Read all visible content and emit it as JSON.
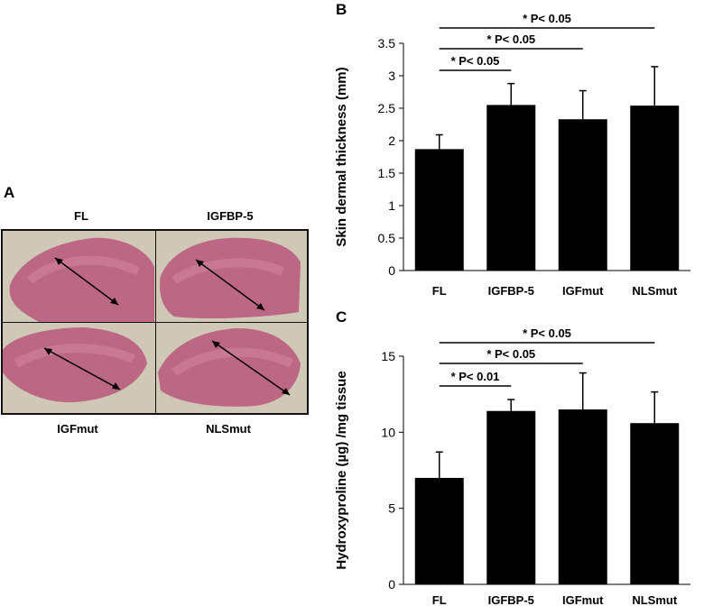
{
  "panel_a": {
    "letter": "A",
    "labels": [
      "FL",
      "IGFBP-5",
      "IGFmut",
      "NLSmut"
    ]
  },
  "chart_data": [
    {
      "panel": "B",
      "type": "bar",
      "categories": [
        "FL",
        "IGFBP-5",
        "IGFmut",
        "NLSmut"
      ],
      "values": [
        1.87,
        2.55,
        2.33,
        2.54
      ],
      "errors": [
        0.22,
        0.33,
        0.44,
        0.6
      ],
      "ylabel": "Skin dermal thickness (mm)",
      "ylim": [
        0,
        3.5
      ],
      "yticks": [
        "0",
        "0.5",
        "1",
        "1.5",
        "2",
        "2.5",
        "3",
        "3.5"
      ],
      "ytick_values": [
        0,
        0.5,
        1,
        1.5,
        2,
        2.5,
        3,
        3.5
      ],
      "bar_color": "#000000",
      "significance": [
        {
          "from": "FL",
          "to": "IGFBP-5",
          "label": "* P< 0.05"
        },
        {
          "from": "FL",
          "to": "IGFmut",
          "label": "* P< 0.05"
        },
        {
          "from": "FL",
          "to": "NLSmut",
          "label": "* P< 0.05"
        }
      ]
    },
    {
      "panel": "C",
      "type": "bar",
      "categories": [
        "FL",
        "IGFBP-5",
        "IGFmut",
        "NLSmut"
      ],
      "values": [
        7.0,
        11.4,
        11.5,
        10.6
      ],
      "errors": [
        1.7,
        0.75,
        2.4,
        2.05
      ],
      "ylabel": "Hydroxyproline (µg) /mg tissue",
      "ylim": [
        0,
        15
      ],
      "yticks": [
        "0",
        "5",
        "10",
        "15"
      ],
      "ytick_values": [
        0,
        5,
        10,
        15
      ],
      "bar_color": "#000000",
      "significance": [
        {
          "from": "FL",
          "to": "IGFBP-5",
          "label": "* P< 0.01"
        },
        {
          "from": "FL",
          "to": "IGFmut",
          "label": "* P< 0.05"
        },
        {
          "from": "FL",
          "to": "NLSmut",
          "label": "* P< 0.05"
        }
      ]
    }
  ]
}
